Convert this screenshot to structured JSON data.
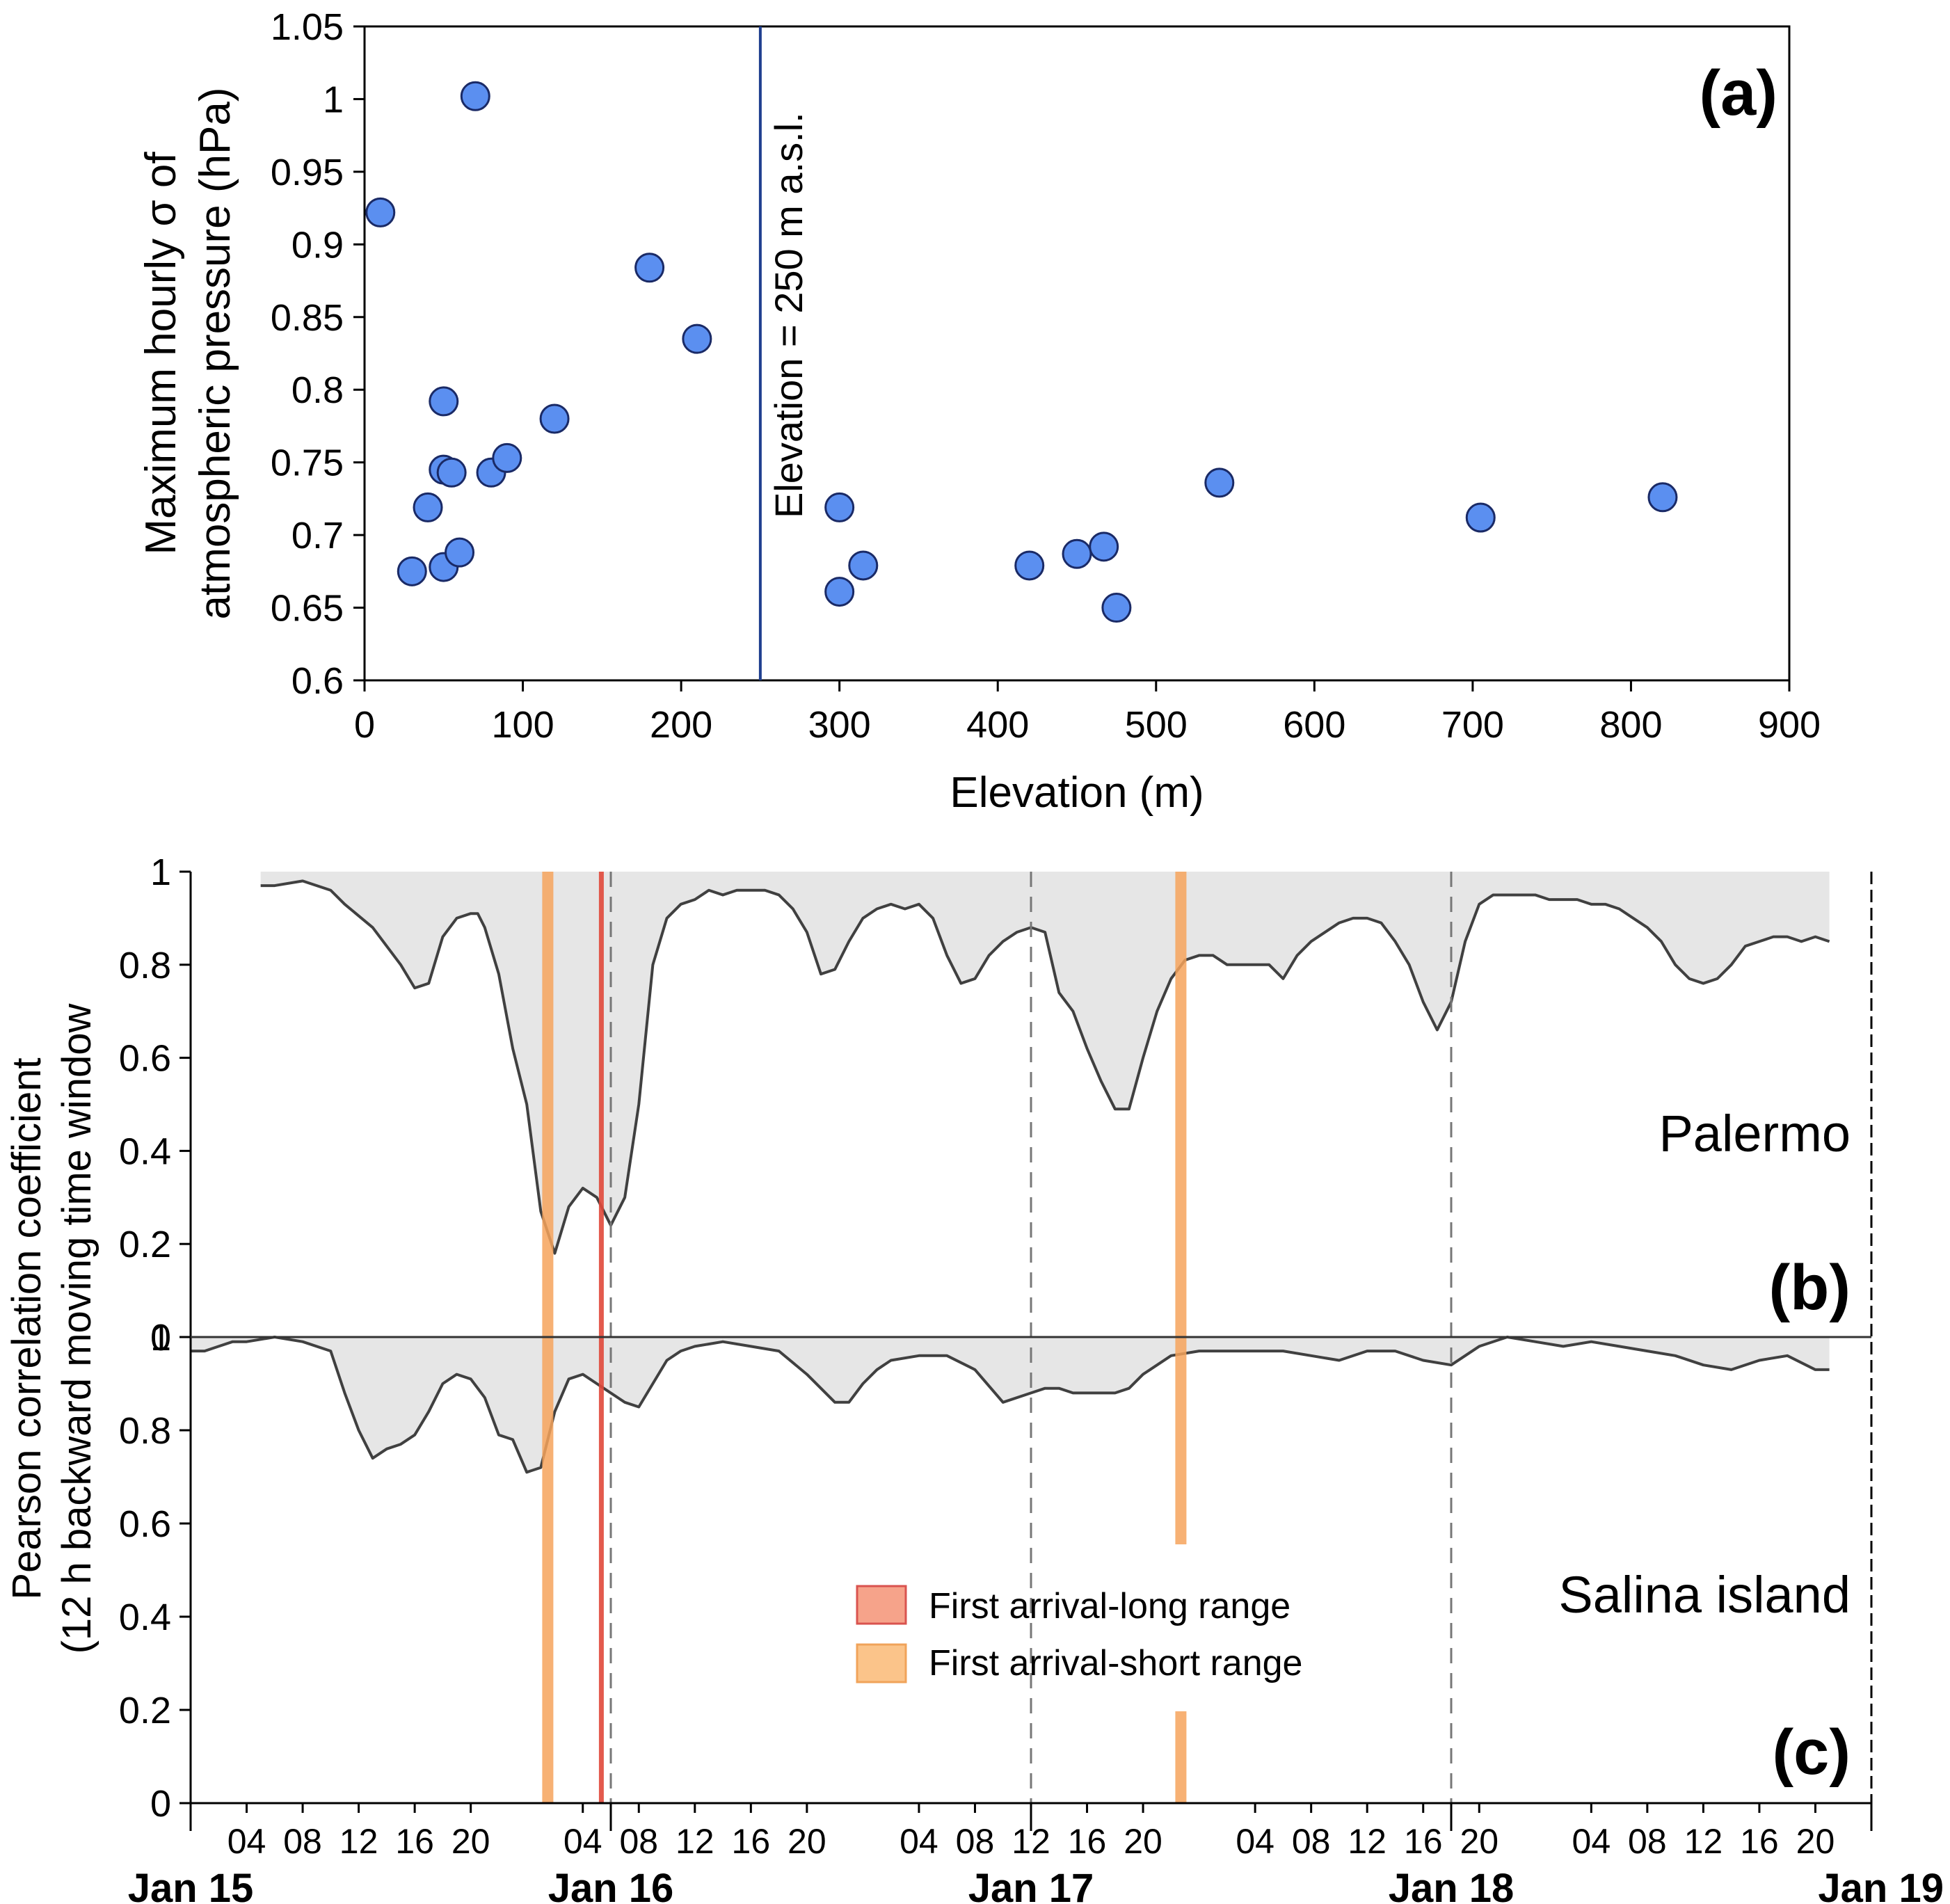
{
  "chart_data": [
    {
      "id": "a",
      "type": "scatter",
      "panel_label": "(a)",
      "xlabel": "Elevation (m)",
      "ylabel_line1": "Maximum hourly σ of",
      "ylabel_line2": "atmospheric pressure (hPa)",
      "xlim": [
        0,
        900
      ],
      "ylim": [
        0.6,
        1.05
      ],
      "xticks": [
        0,
        100,
        200,
        300,
        400,
        500,
        600,
        700,
        800,
        900
      ],
      "xtick_labels": [
        "0",
        "100",
        "200",
        "300",
        "400",
        "500",
        "600",
        "700",
        "800",
        "900"
      ],
      "yticks": [
        0.6,
        0.65,
        0.7,
        0.75,
        0.8,
        0.85,
        0.9,
        0.95,
        1.0,
        1.05
      ],
      "ytick_labels": [
        "0.6",
        "0.65",
        "0.7",
        "0.75",
        "0.8",
        "0.85",
        "0.9",
        "0.95",
        "1",
        "1.05"
      ],
      "reference_line": {
        "x": 250,
        "label": "Elevation = 250 m a.s.l.",
        "color": "#1f3f8f"
      },
      "marker_color": "#5b8ff0",
      "marker_edge": "#1a2a66",
      "points": [
        {
          "x": 10,
          "y": 0.922
        },
        {
          "x": 30,
          "y": 0.675
        },
        {
          "x": 40,
          "y": 0.719
        },
        {
          "x": 50,
          "y": 0.792
        },
        {
          "x": 50,
          "y": 0.745
        },
        {
          "x": 50,
          "y": 0.678
        },
        {
          "x": 55,
          "y": 0.743
        },
        {
          "x": 60,
          "y": 0.688
        },
        {
          "x": 70,
          "y": 1.002
        },
        {
          "x": 80,
          "y": 0.743
        },
        {
          "x": 90,
          "y": 0.753
        },
        {
          "x": 120,
          "y": 0.78
        },
        {
          "x": 180,
          "y": 0.884
        },
        {
          "x": 210,
          "y": 0.835
        },
        {
          "x": 300,
          "y": 0.719
        },
        {
          "x": 300,
          "y": 0.661
        },
        {
          "x": 315,
          "y": 0.679
        },
        {
          "x": 420,
          "y": 0.679
        },
        {
          "x": 450,
          "y": 0.687
        },
        {
          "x": 467,
          "y": 0.692
        },
        {
          "x": 475,
          "y": 0.65
        },
        {
          "x": 540,
          "y": 0.736
        },
        {
          "x": 705,
          "y": 0.712
        },
        {
          "x": 820,
          "y": 0.726
        }
      ]
    },
    {
      "id": "b",
      "type": "area",
      "panel_label": "(b)",
      "station": "Palermo",
      "ylim": [
        0,
        1
      ],
      "yticks": [
        0,
        0.2,
        0.4,
        0.6,
        0.8,
        1
      ],
      "ytick_labels": [
        "0",
        "0.2",
        "0.4",
        "0.6",
        "0.8",
        "1"
      ],
      "line_color": "#404040",
      "fill_color": "#e6e6e6",
      "x_hours": [
        5,
        6,
        8,
        10,
        11,
        13,
        15,
        16,
        17,
        18,
        19,
        20,
        20.5,
        21,
        22,
        23,
        24,
        25,
        26,
        27,
        28,
        29,
        30,
        31,
        32,
        33,
        34,
        35,
        36,
        37,
        38,
        39,
        40,
        41,
        42,
        43,
        44,
        45,
        46,
        47,
        48,
        49,
        50,
        51,
        52,
        53,
        54,
        55,
        56,
        57,
        58,
        59,
        60,
        61,
        62,
        63,
        64,
        65,
        66,
        67,
        68,
        69,
        70,
        71,
        72,
        73,
        74,
        75,
        76,
        77,
        78,
        79,
        80,
        81,
        82,
        83,
        84,
        85,
        86,
        87,
        88,
        89,
        90,
        91,
        92,
        93,
        94,
        95,
        96,
        97,
        98,
        99,
        100,
        101,
        102,
        103,
        104,
        105,
        106,
        107,
        108,
        109,
        110,
        111,
        112,
        113,
        114,
        115,
        116,
        117
      ],
      "y_values": [
        0.97,
        0.97,
        0.98,
        0.96,
        0.93,
        0.88,
        0.8,
        0.75,
        0.76,
        0.86,
        0.9,
        0.91,
        0.91,
        0.88,
        0.78,
        0.62,
        0.5,
        0.27,
        0.18,
        0.28,
        0.32,
        0.3,
        0.24,
        0.3,
        0.5,
        0.8,
        0.9,
        0.93,
        0.94,
        0.96,
        0.95,
        0.96,
        0.96,
        0.96,
        0.95,
        0.92,
        0.87,
        0.78,
        0.79,
        0.85,
        0.9,
        0.92,
        0.93,
        0.92,
        0.93,
        0.9,
        0.82,
        0.76,
        0.77,
        0.82,
        0.85,
        0.87,
        0.88,
        0.87,
        0.74,
        0.7,
        0.62,
        0.55,
        0.49,
        0.49,
        0.6,
        0.7,
        0.77,
        0.81,
        0.82,
        0.82,
        0.8,
        0.8,
        0.8,
        0.8,
        0.77,
        0.82,
        0.85,
        0.87,
        0.89,
        0.9,
        0.9,
        0.89,
        0.85,
        0.8,
        0.72,
        0.66,
        0.72,
        0.85,
        0.93,
        0.95,
        0.95,
        0.95,
        0.95,
        0.94,
        0.94,
        0.94,
        0.93,
        0.93,
        0.92,
        0.9,
        0.88,
        0.85,
        0.8,
        0.77,
        0.76,
        0.77,
        0.8,
        0.84,
        0.85,
        0.86,
        0.86,
        0.85,
        0.86,
        0.85
      ]
    },
    {
      "id": "c",
      "type": "area",
      "panel_label": "(c)",
      "station": "Salina island",
      "ylabel_line1": "Pearson correlation coefficient",
      "ylabel_line2": "(12 h backward moving time window",
      "ylim": [
        0,
        1
      ],
      "yticks": [
        0,
        0.2,
        0.4,
        0.6,
        0.8,
        1
      ],
      "ytick_labels": [
        "0",
        "0.2",
        "0.4",
        "0.6",
        "0.8",
        "1"
      ],
      "line_color": "#404040",
      "fill_color": "#e6e6e6",
      "x_hours": [
        0,
        1,
        2,
        3,
        4,
        6,
        8,
        10,
        11,
        12,
        13,
        14,
        15,
        16,
        17,
        18,
        19,
        20,
        21,
        22,
        23,
        24,
        25,
        26,
        27,
        28,
        29,
        30,
        31,
        32,
        33,
        34,
        35,
        36,
        38,
        40,
        42,
        44,
        46,
        47,
        48,
        49,
        50,
        52,
        54,
        56,
        58,
        60,
        61,
        62,
        63,
        64,
        65,
        66,
        67,
        68,
        70,
        72,
        74,
        76,
        78,
        80,
        82,
        84,
        86,
        88,
        90,
        92,
        94,
        96,
        98,
        100,
        102,
        104,
        106,
        108,
        110,
        112,
        114,
        116,
        117
      ],
      "y_values": [
        0.97,
        0.97,
        0.98,
        0.99,
        0.99,
        1.0,
        0.99,
        0.97,
        0.88,
        0.8,
        0.74,
        0.76,
        0.77,
        0.79,
        0.84,
        0.9,
        0.92,
        0.91,
        0.87,
        0.79,
        0.78,
        0.71,
        0.72,
        0.84,
        0.91,
        0.92,
        0.9,
        0.88,
        0.86,
        0.85,
        0.9,
        0.95,
        0.97,
        0.98,
        0.99,
        0.98,
        0.97,
        0.92,
        0.86,
        0.86,
        0.9,
        0.93,
        0.95,
        0.96,
        0.96,
        0.93,
        0.86,
        0.88,
        0.89,
        0.89,
        0.88,
        0.88,
        0.88,
        0.88,
        0.89,
        0.92,
        0.96,
        0.97,
        0.97,
        0.97,
        0.97,
        0.96,
        0.95,
        0.97,
        0.97,
        0.95,
        0.94,
        0.98,
        1.0,
        0.99,
        0.98,
        0.99,
        0.98,
        0.97,
        0.96,
        0.94,
        0.93,
        0.95,
        0.96,
        0.93,
        0.93
      ]
    }
  ],
  "time_axis": {
    "start_label": "Jan 15",
    "hour_range": [
      0,
      120
    ],
    "hour_ticks": [
      4,
      8,
      12,
      16,
      20,
      28,
      32,
      36,
      40,
      44,
      52,
      56,
      60,
      64,
      68,
      76,
      80,
      84,
      88,
      92,
      100,
      104,
      108,
      112,
      116
    ],
    "hour_tick_labels": [
      "04",
      "08",
      "12",
      "16",
      "20",
      "04",
      "08",
      "12",
      "16",
      "20",
      "04",
      "08",
      "12",
      "16",
      "20",
      "04",
      "08",
      "12",
      "16",
      "20",
      "04",
      "08",
      "12",
      "16",
      "20"
    ],
    "day_ticks": [
      0,
      30,
      60,
      90,
      120
    ],
    "day_labels": [
      "Jan 15",
      "Jan 16",
      "Jan 17",
      "Jan 18",
      "Jan 19"
    ],
    "dashed_day_lines": [
      30,
      60,
      90
    ]
  },
  "arrival_bands": [
    {
      "type": "short",
      "hour": 25.5,
      "color": "#f6a35c"
    },
    {
      "type": "long",
      "hour": 29.3,
      "color": "#e0483a"
    },
    {
      "type": "short",
      "hour": 70.7,
      "color": "#f6a35c"
    }
  ],
  "legend": {
    "items": [
      {
        "label": "First arrival-long range",
        "color": "#f6a38a",
        "border": "#d9534f"
      },
      {
        "label": "First arrival-short range",
        "color": "#fbc48a",
        "border": "#f0a35a"
      }
    ]
  }
}
